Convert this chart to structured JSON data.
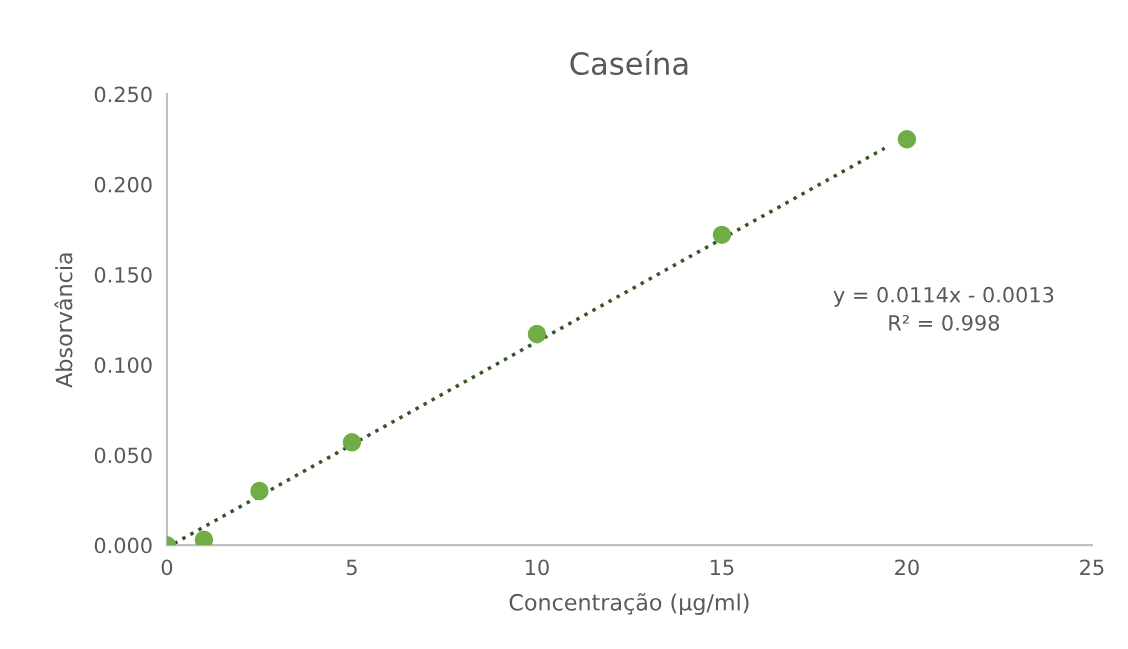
{
  "chart_data": {
    "type": "scatter",
    "title": "Caseína",
    "xlabel": "Concentração (µg/ml)",
    "ylabel": "Absorvância",
    "annotations": [
      "y = 0.0114x - 0.0013\nR² = 0.998"
    ],
    "xlim": [
      0,
      25
    ],
    "xticks": [
      0,
      5,
      10,
      15,
      20,
      25
    ],
    "ylim": [
      0,
      0.25
    ],
    "yticks": [
      {
        "value": 0,
        "label": "0.000"
      },
      {
        "value": 0.05,
        "label": "0.050"
      },
      {
        "value": 0.1,
        "label": "0.100"
      },
      {
        "value": 0.15,
        "label": "0.150"
      },
      {
        "value": 0.2,
        "label": "0.200"
      },
      {
        "value": 0.25,
        "label": "0.250"
      }
    ],
    "grid": false,
    "series": [
      {
        "color": "#70ad47",
        "marker": "circle",
        "x": [
          0,
          1,
          2.5,
          5,
          10,
          15,
          20
        ],
        "values": [
          0.0,
          0.003,
          0.03,
          0.057,
          0.117,
          0.172,
          0.225
        ]
      },
      {
        "type": "line",
        "color": "#375623",
        "marker": "none",
        "line_style": "dotted",
        "x": [
          0.2,
          19.4
        ],
        "values": [
          0.001,
          0.22
        ]
      }
    ]
  }
}
